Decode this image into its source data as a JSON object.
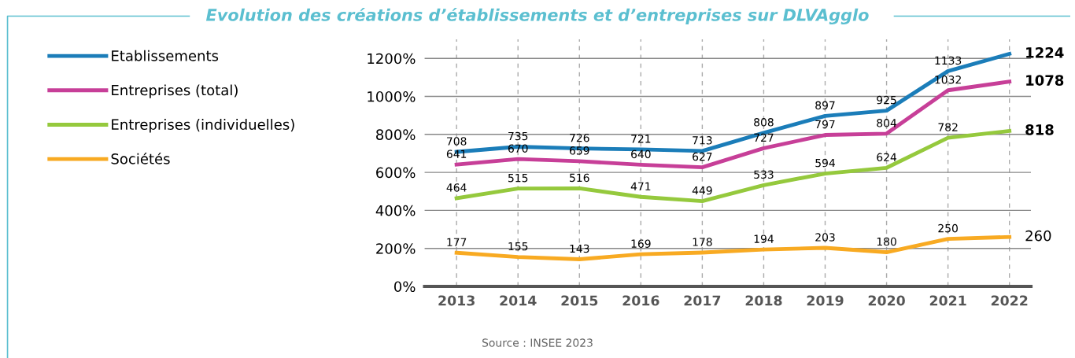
{
  "chart_data": {
    "type": "line",
    "title": "Evolution des créations d’établissements et d’entreprises sur DLVAgglo",
    "categories": [
      "2013",
      "2014",
      "2015",
      "2016",
      "2017",
      "2018",
      "2019",
      "2020",
      "2021",
      "2022"
    ],
    "series": [
      {
        "name": "Etablissements",
        "color": "#1b7db9",
        "values": [
          708,
          735,
          726,
          721,
          713,
          808,
          897,
          925,
          1133,
          1224
        ]
      },
      {
        "name": "Entreprises (total)",
        "color": "#c73f98",
        "values": [
          641,
          670,
          659,
          640,
          627,
          727,
          797,
          804,
          1032,
          1078
        ]
      },
      {
        "name": "Entreprises (individuelles)",
        "color": "#95c93d",
        "values": [
          464,
          515,
          516,
          471,
          449,
          533,
          594,
          624,
          782,
          818
        ]
      },
      {
        "name": "Sociétés",
        "color": "#f8aa22",
        "values": [
          177,
          155,
          143,
          169,
          178,
          194,
          203,
          180,
          250,
          260
        ]
      }
    ],
    "ylim": [
      0,
      1300
    ],
    "yticks": [
      {
        "value": 0,
        "label": "0%"
      },
      {
        "value": 200,
        "label": "200%"
      },
      {
        "value": 400,
        "label": "400%"
      },
      {
        "value": 600,
        "label": "600%"
      },
      {
        "value": 800,
        "label": "800%"
      },
      {
        "value": 1000,
        "label": "1000%"
      },
      {
        "value": 1200,
        "label": "1200%"
      }
    ],
    "grid": true,
    "legend": "left",
    "data_labels": true,
    "marker": "none",
    "line_style": "solid",
    "annotations": [
      "Source : INSEE 2023"
    ]
  }
}
